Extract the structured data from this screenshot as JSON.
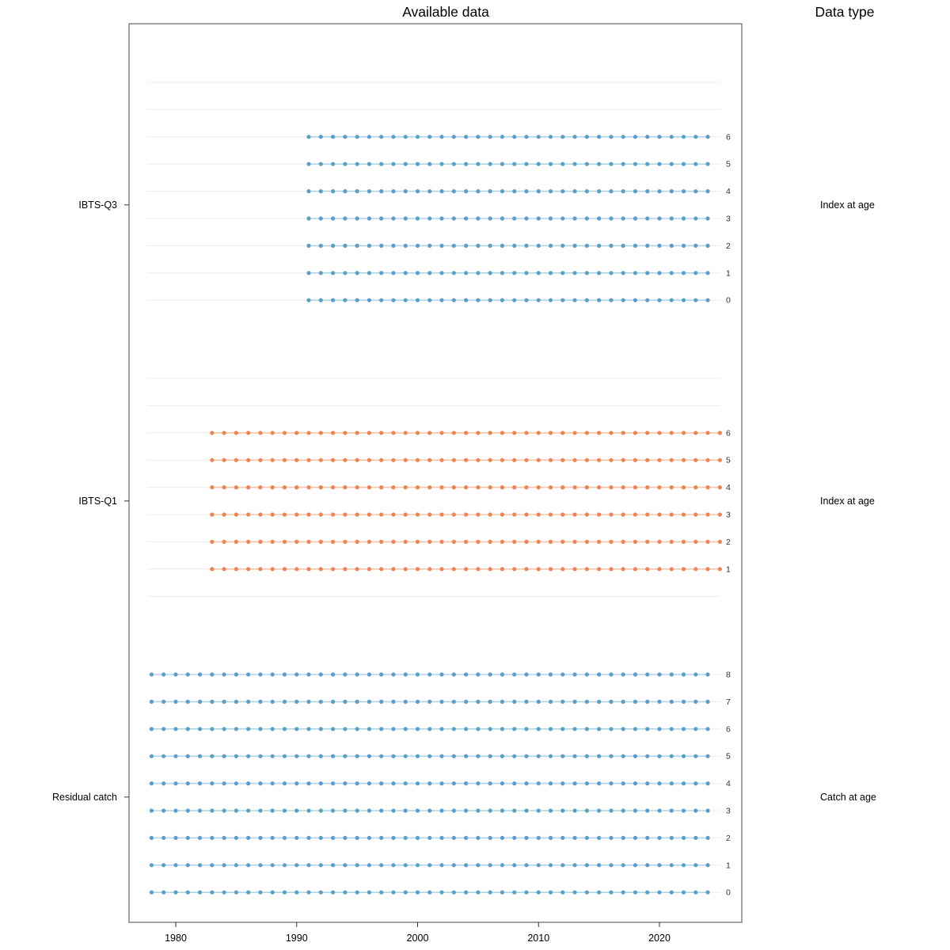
{
  "chart_data": {
    "type": "scatter",
    "title": "Available data",
    "right_header": "Data type",
    "x_ticks": [
      "1980",
      "1990",
      "2000",
      "2010",
      "2020"
    ],
    "age_slots": [
      8,
      7,
      6,
      5,
      4,
      3,
      2,
      1,
      0
    ],
    "panels": [
      {
        "fleet": "IBTS-Q3",
        "data_type": "Index at age",
        "dot_color": "#5b9ec9",
        "line_color": "#b3d3e6",
        "series": [
          {
            "age": 6,
            "start": 1991,
            "end": 2024
          },
          {
            "age": 5,
            "start": 1991,
            "end": 2024
          },
          {
            "age": 4,
            "start": 1991,
            "end": 2024
          },
          {
            "age": 3,
            "start": 1991,
            "end": 2024
          },
          {
            "age": 2,
            "start": 1991,
            "end": 2024
          },
          {
            "age": 1,
            "start": 1991,
            "end": 2024
          },
          {
            "age": 0,
            "start": 1991,
            "end": 2024
          }
        ]
      },
      {
        "fleet": "IBTS-Q1",
        "data_type": "Index at age",
        "dot_color": "#ef8354",
        "line_color": "#f7c4ab",
        "series": [
          {
            "age": 6,
            "start": 1983,
            "end": 2025
          },
          {
            "age": 5,
            "start": 1983,
            "end": 2025
          },
          {
            "age": 4,
            "start": 1983,
            "end": 2025
          },
          {
            "age": 3,
            "start": 1983,
            "end": 2025
          },
          {
            "age": 2,
            "start": 1983,
            "end": 2025
          },
          {
            "age": 1,
            "start": 1983,
            "end": 2025
          }
        ]
      },
      {
        "fleet": "Residual catch",
        "data_type": "Catch at age",
        "dot_color": "#5b9ec9",
        "line_color": "#b3d3e6",
        "series": [
          {
            "age": 8,
            "start": 1978,
            "end": 2024
          },
          {
            "age": 7,
            "start": 1978,
            "end": 2024
          },
          {
            "age": 6,
            "start": 1978,
            "end": 2024
          },
          {
            "age": 5,
            "start": 1978,
            "end": 2024
          },
          {
            "age": 4,
            "start": 1978,
            "end": 2024
          },
          {
            "age": 3,
            "start": 1978,
            "end": 2024
          },
          {
            "age": 2,
            "start": 1978,
            "end": 2024
          },
          {
            "age": 1,
            "start": 1978,
            "end": 2024
          },
          {
            "age": 0,
            "start": 1978,
            "end": 2024
          }
        ]
      }
    ]
  }
}
